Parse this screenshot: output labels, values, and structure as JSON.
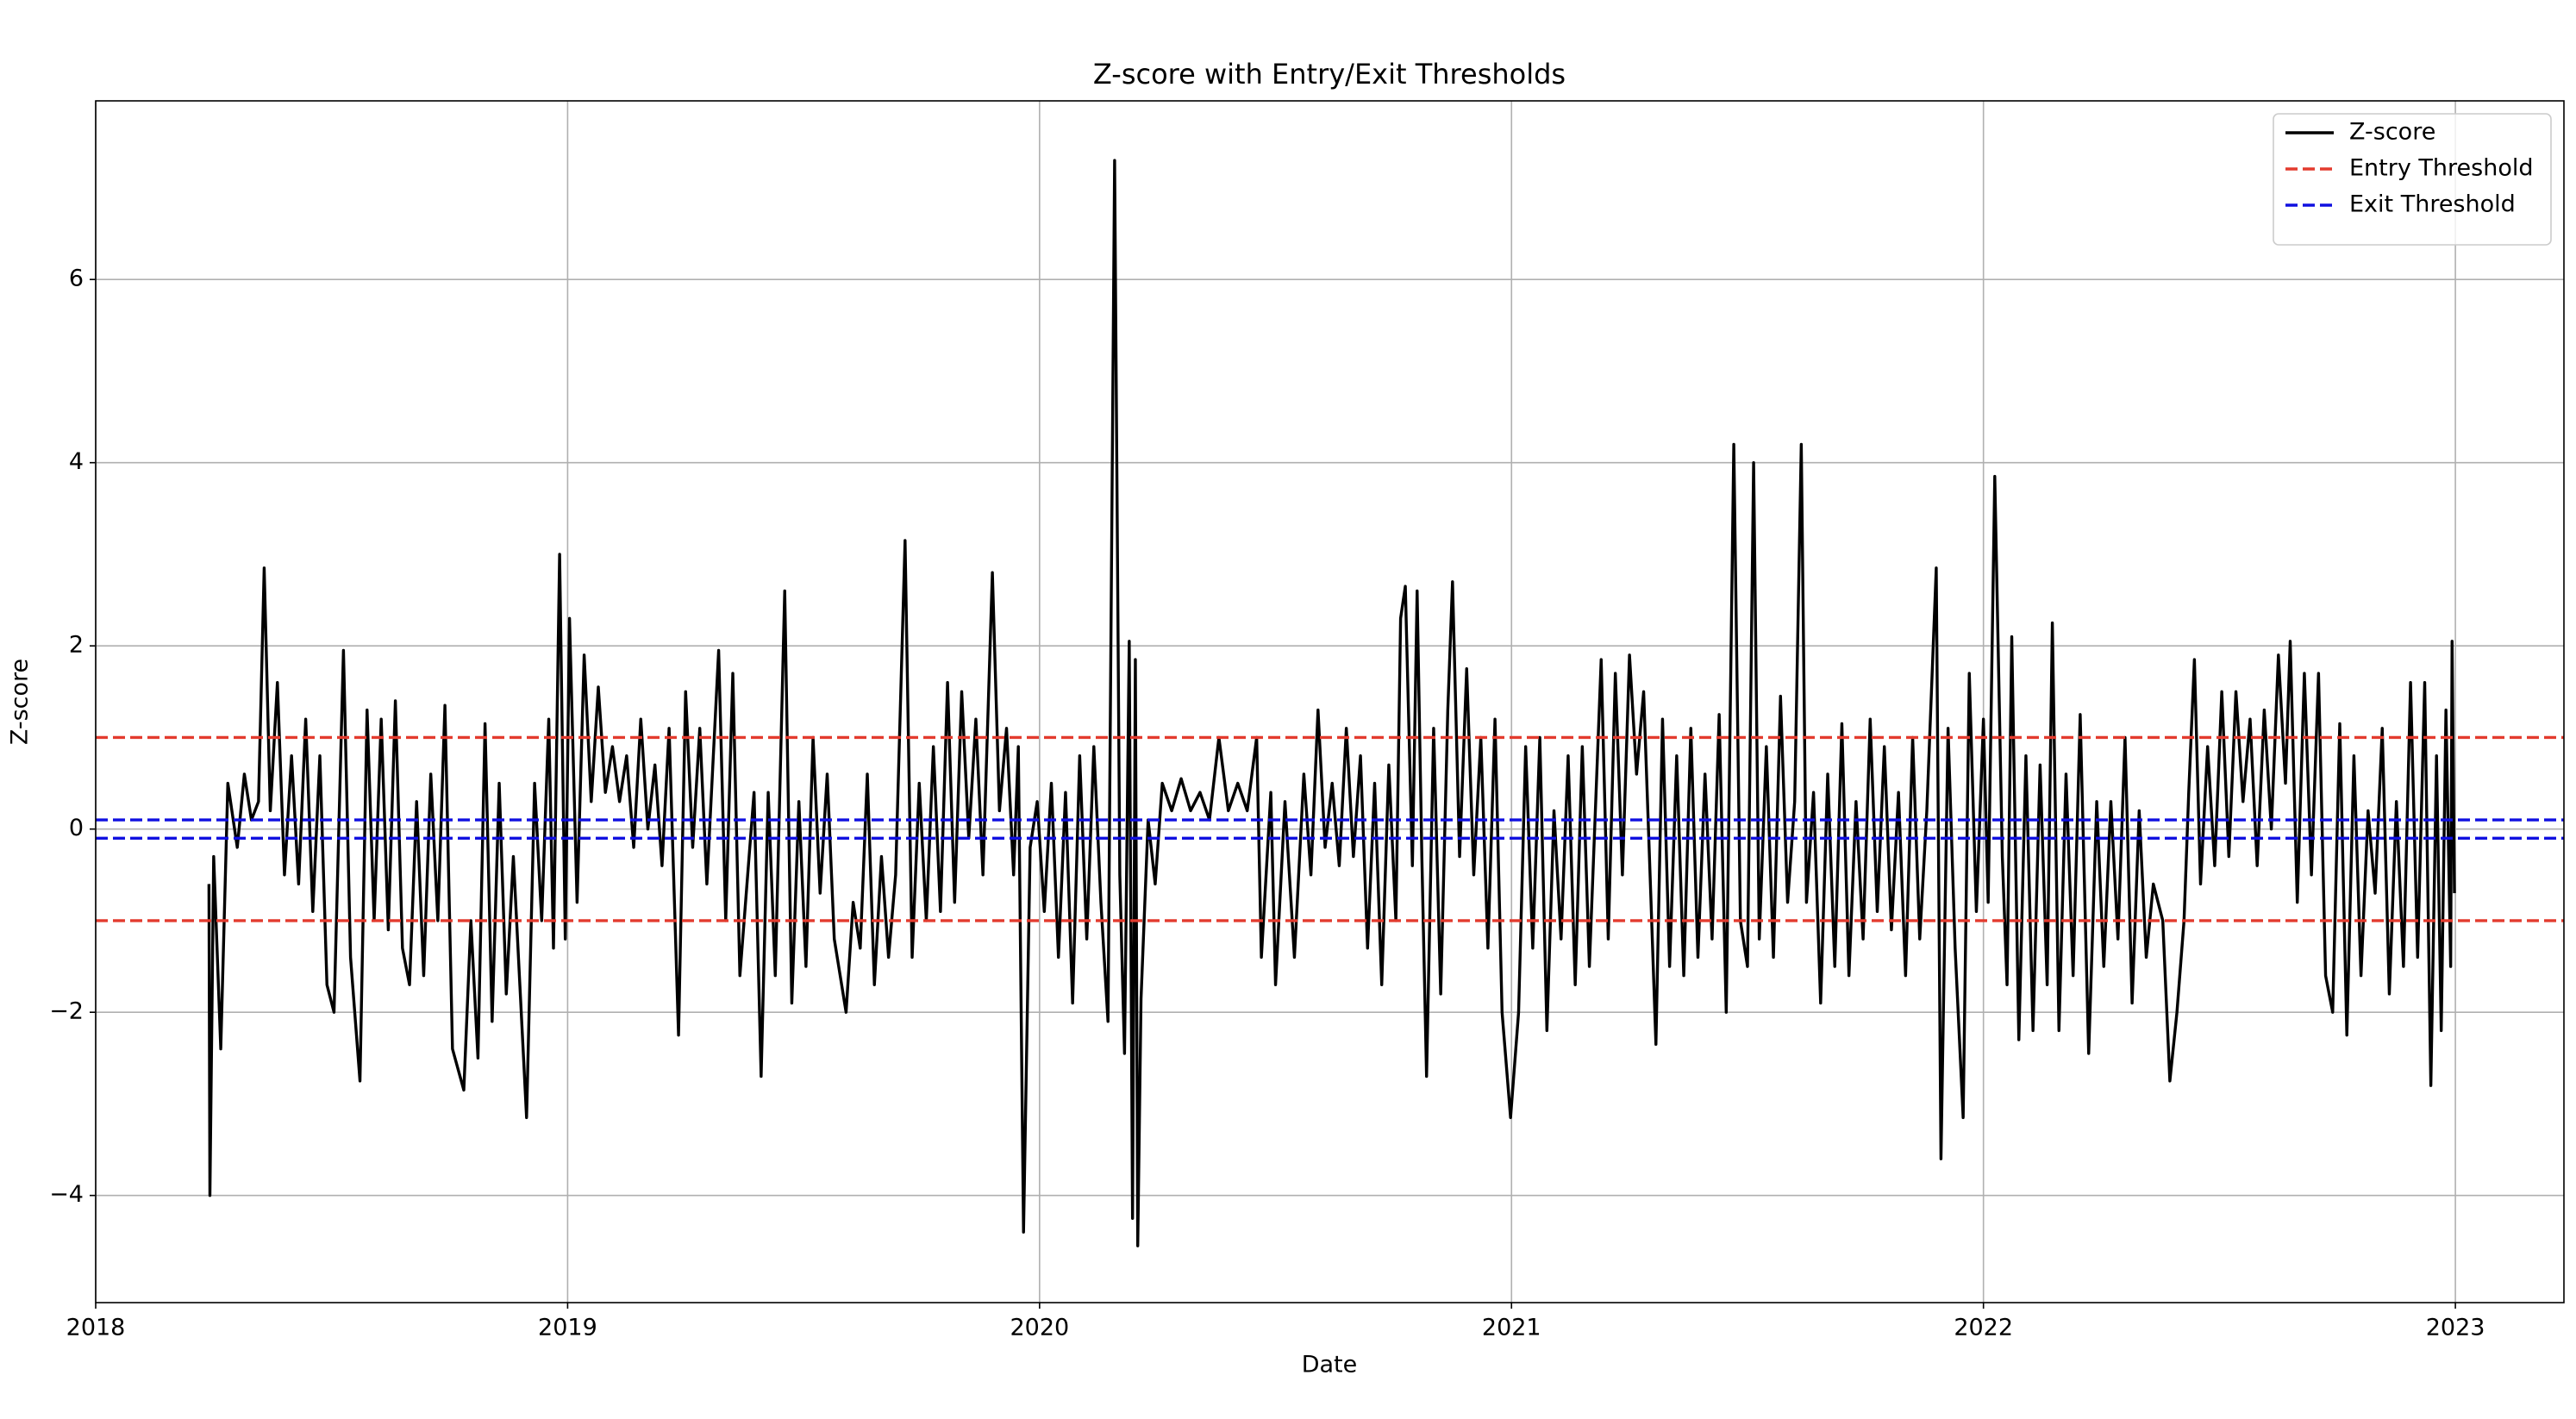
{
  "chart_data": {
    "type": "line",
    "title": "Z-score with Entry/Exit Thresholds",
    "x_label": "Date",
    "y_label": "Z-score",
    "x": [
      2018.24,
      2018.242,
      2018.25,
      2018.265,
      2018.28,
      2018.3,
      2018.315,
      2018.33,
      2018.345,
      2018.357,
      2018.37,
      2018.385,
      2018.4,
      2018.415,
      2018.43,
      2018.445,
      2018.46,
      2018.475,
      2018.49,
      2018.505,
      2018.525,
      2018.54,
      2018.56,
      2018.575,
      2018.59,
      2018.605,
      2018.62,
      2018.635,
      2018.65,
      2018.665,
      2018.68,
      2018.695,
      2018.71,
      2018.725,
      2018.74,
      2018.756,
      2018.78,
      2018.795,
      2018.81,
      2018.825,
      2018.84,
      2018.855,
      2018.87,
      2018.885,
      2018.913,
      2018.93,
      2018.945,
      2018.96,
      2018.97,
      2018.983,
      2018.995,
      2019.004,
      2019.02,
      2019.035,
      2019.05,
      2019.065,
      2019.08,
      2019.095,
      2019.11,
      2019.125,
      2019.14,
      2019.155,
      2019.17,
      2019.185,
      2019.2,
      2019.215,
      2019.235,
      2019.25,
      2019.265,
      2019.28,
      2019.295,
      2019.32,
      2019.335,
      2019.35,
      2019.365,
      2019.38,
      2019.395,
      2019.41,
      2019.425,
      2019.44,
      2019.46,
      2019.475,
      2019.49,
      2019.505,
      2019.52,
      2019.535,
      2019.55,
      2019.565,
      2019.59,
      2019.605,
      2019.62,
      2019.635,
      2019.65,
      2019.665,
      2019.68,
      2019.695,
      2019.715,
      2019.73,
      2019.745,
      2019.76,
      2019.775,
      2019.79,
      2019.805,
      2019.82,
      2019.835,
      2019.85,
      2019.865,
      2019.88,
      2019.9,
      2019.915,
      2019.93,
      2019.945,
      2019.955,
      2019.966,
      2019.98,
      2019.995,
      2020.01,
      2020.025,
      2020.04,
      2020.055,
      2020.07,
      2020.085,
      2020.1,
      2020.115,
      2020.13,
      2020.145,
      2020.159,
      2020.17,
      2020.18,
      2020.19,
      2020.197,
      2020.203,
      2020.208,
      2020.215,
      2020.23,
      2020.245,
      2020.26,
      2020.28,
      2020.3,
      2020.32,
      2020.34,
      2020.36,
      2020.38,
      2020.4,
      2020.42,
      2020.44,
      2020.46,
      2020.47,
      2020.49,
      2020.5,
      2020.52,
      2020.54,
      2020.56,
      2020.575,
      2020.59,
      2020.605,
      2020.62,
      2020.635,
      2020.65,
      2020.665,
      2020.68,
      2020.695,
      2020.71,
      2020.725,
      2020.74,
      2020.755,
      2020.765,
      2020.775,
      2020.79,
      2020.8,
      2020.81,
      2020.82,
      2020.835,
      2020.85,
      2020.865,
      2020.875,
      2020.89,
      2020.905,
      2020.92,
      2020.935,
      2020.95,
      2020.965,
      2020.98,
      2020.998,
      2021.015,
      2021.03,
      2021.045,
      2021.06,
      2021.075,
      2021.09,
      2021.105,
      2021.12,
      2021.135,
      2021.15,
      2021.165,
      2021.19,
      2021.205,
      2021.22,
      2021.235,
      2021.25,
      2021.265,
      2021.28,
      2021.295,
      2021.306,
      2021.32,
      2021.335,
      2021.35,
      2021.365,
      2021.38,
      2021.395,
      2021.41,
      2021.425,
      2021.44,
      2021.455,
      2021.471,
      2021.485,
      2021.5,
      2021.513,
      2021.525,
      2021.54,
      2021.555,
      2021.57,
      2021.585,
      2021.6,
      2021.614,
      2021.625,
      2021.64,
      2021.655,
      2021.67,
      2021.685,
      2021.7,
      2021.715,
      2021.73,
      2021.745,
      2021.76,
      2021.775,
      2021.79,
      2021.805,
      2021.82,
      2021.835,
      2021.85,
      2021.865,
      2021.88,
      2021.9,
      2021.91,
      2021.925,
      2021.94,
      2021.957,
      2021.97,
      2021.985,
      2022.0,
      2022.01,
      2022.024,
      2022.04,
      2022.05,
      2022.06,
      2022.075,
      2022.09,
      2022.105,
      2022.12,
      2022.135,
      2022.146,
      2022.16,
      2022.175,
      2022.19,
      2022.205,
      2022.223,
      2022.24,
      2022.255,
      2022.27,
      2022.285,
      2022.3,
      2022.315,
      2022.33,
      2022.345,
      2022.36,
      2022.38,
      2022.395,
      2022.41,
      2022.425,
      2022.435,
      2022.447,
      2022.46,
      2022.475,
      2022.49,
      2022.505,
      2022.52,
      2022.535,
      2022.55,
      2022.565,
      2022.58,
      2022.595,
      2022.61,
      2022.625,
      2022.64,
      2022.65,
      2022.665,
      2022.68,
      2022.695,
      2022.71,
      2022.725,
      2022.74,
      2022.755,
      2022.77,
      2022.785,
      2022.8,
      2022.815,
      2022.83,
      2022.845,
      2022.86,
      2022.875,
      2022.89,
      2022.905,
      2022.92,
      2022.935,
      2022.948,
      2022.96,
      2022.97,
      2022.98,
      2022.99,
      2022.993,
      2022.998
    ],
    "series": [
      {
        "name": "Z-score",
        "color": "#000000",
        "values": [
          -0.6,
          -4.0,
          -0.3,
          -2.4,
          0.5,
          -0.2,
          0.6,
          0.1,
          0.3,
          2.85,
          0.2,
          1.6,
          -0.5,
          0.8,
          -0.6,
          1.2,
          -0.9,
          0.8,
          -1.7,
          -2.0,
          1.95,
          -1.4,
          -2.75,
          1.3,
          -1.0,
          1.2,
          -1.1,
          1.4,
          -1.3,
          -1.7,
          0.3,
          -1.6,
          0.6,
          -1.0,
          1.35,
          -2.4,
          -2.85,
          -1.0,
          -2.5,
          1.15,
          -2.1,
          0.5,
          -1.8,
          -0.3,
          -3.15,
          0.5,
          -1.0,
          1.2,
          -1.3,
          3.0,
          -1.2,
          2.3,
          -0.8,
          1.9,
          0.3,
          1.55,
          0.4,
          0.9,
          0.3,
          0.8,
          -0.2,
          1.2,
          0.0,
          0.7,
          -0.4,
          1.1,
          -2.25,
          1.5,
          -0.2,
          1.1,
          -0.6,
          1.95,
          -1.0,
          1.7,
          -1.6,
          -0.6,
          0.4,
          -2.7,
          0.4,
          -1.6,
          2.6,
          -1.9,
          0.3,
          -1.5,
          1.0,
          -0.7,
          0.6,
          -1.2,
          -2.0,
          -0.8,
          -1.3,
          0.6,
          -1.7,
          -0.3,
          -1.4,
          -0.5,
          3.15,
          -1.4,
          0.5,
          -1.0,
          0.9,
          -0.9,
          1.6,
          -0.8,
          1.5,
          -0.1,
          1.2,
          -0.5,
          2.8,
          0.2,
          1.1,
          -0.5,
          0.9,
          -4.4,
          -0.2,
          0.3,
          -0.9,
          0.5,
          -1.4,
          0.4,
          -1.9,
          0.8,
          -1.2,
          0.9,
          -0.8,
          -2.1,
          7.3,
          -0.5,
          -2.45,
          2.05,
          -4.25,
          1.85,
          -4.55,
          -1.85,
          0.1,
          -0.6,
          0.5,
          0.2,
          0.55,
          0.2,
          0.4,
          0.1,
          1.0,
          0.2,
          0.5,
          0.2,
          1.0,
          -1.4,
          0.4,
          -1.7,
          0.3,
          -1.4,
          0.6,
          -0.5,
          1.3,
          -0.2,
          0.5,
          -0.4,
          1.1,
          -0.3,
          0.8,
          -1.3,
          0.5,
          -1.7,
          0.7,
          -1.0,
          2.3,
          2.65,
          -0.4,
          2.6,
          -0.3,
          -2.7,
          1.1,
          -1.8,
          1.3,
          2.7,
          -0.3,
          1.75,
          -0.5,
          1.0,
          -1.3,
          1.2,
          -2.0,
          -3.15,
          -2.0,
          0.9,
          -1.3,
          1.0,
          -2.2,
          0.2,
          -1.2,
          0.8,
          -1.7,
          0.9,
          -1.5,
          1.85,
          -1.2,
          1.7,
          -0.5,
          1.9,
          0.6,
          1.5,
          -0.7,
          -2.35,
          1.2,
          -1.5,
          0.8,
          -1.6,
          1.1,
          -1.4,
          0.6,
          -1.2,
          1.25,
          -2.0,
          4.2,
          -1.0,
          -1.5,
          4.0,
          -1.2,
          0.9,
          -1.4,
          1.45,
          -0.8,
          0.3,
          4.2,
          -0.8,
          0.4,
          -1.9,
          0.6,
          -1.5,
          1.15,
          -1.6,
          0.3,
          -1.2,
          1.2,
          -0.9,
          0.9,
          -1.1,
          0.4,
          -1.6,
          1.0,
          -1.2,
          0.2,
          2.85,
          -3.6,
          1.1,
          -1.3,
          -3.15,
          1.7,
          -0.9,
          1.2,
          -0.8,
          3.85,
          -0.3,
          -1.7,
          2.1,
          -2.3,
          0.8,
          -2.2,
          0.7,
          -1.7,
          2.25,
          -2.2,
          0.6,
          -1.6,
          1.25,
          -2.45,
          0.3,
          -1.5,
          0.3,
          -1.2,
          1.0,
          -1.9,
          0.2,
          -1.4,
          -0.6,
          -1.0,
          -2.75,
          -2.0,
          -1.0,
          0.4,
          1.85,
          -0.6,
          0.9,
          -0.4,
          1.5,
          -0.3,
          1.5,
          0.3,
          1.2,
          -0.4,
          1.3,
          0.0,
          1.9,
          0.5,
          2.05,
          -0.8,
          1.7,
          -0.5,
          1.7,
          -1.6,
          -2.0,
          1.15,
          -2.25,
          0.8,
          -1.6,
          0.2,
          -0.7,
          1.1,
          -1.8,
          0.3,
          -1.5,
          1.6,
          -1.4,
          1.6,
          -2.8,
          0.8,
          -2.2,
          1.3,
          -1.5,
          2.05,
          -0.7
        ]
      }
    ],
    "thresholds": [
      {
        "name": "Entry Threshold",
        "color": "#e33b2e",
        "values": [
          1,
          -1
        ]
      },
      {
        "name": "Exit Threshold",
        "color": "#1010e0",
        "values": [
          0.1,
          -0.1
        ]
      }
    ],
    "xlim": [
      2018,
      2023.23
    ],
    "xticks": [
      2018,
      2019,
      2020,
      2021,
      2022,
      2023
    ],
    "ylim": [
      -5.17,
      7.95
    ],
    "yticks": [
      {
        "value": -4,
        "label": "−4"
      },
      {
        "value": -2,
        "label": "−2"
      },
      0,
      2,
      4,
      6
    ],
    "grid": true,
    "legend": "upper right"
  }
}
